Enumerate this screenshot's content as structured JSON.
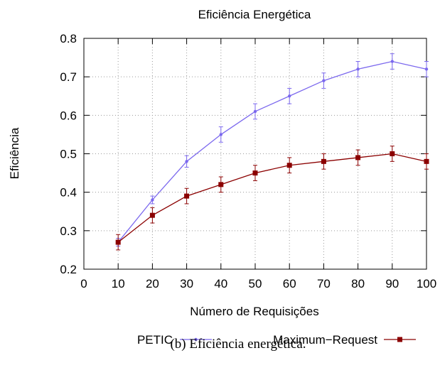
{
  "chart_data": {
    "type": "line",
    "title": "Eficiência Energética",
    "xlabel": "Número de Requisições",
    "ylabel": "Eficiência",
    "x": [
      10,
      20,
      30,
      40,
      50,
      60,
      70,
      80,
      90,
      100
    ],
    "xlim": [
      0,
      100
    ],
    "ylim": [
      0.2,
      0.8
    ],
    "x_ticks": [
      0,
      10,
      20,
      30,
      40,
      50,
      60,
      70,
      80,
      90,
      100
    ],
    "y_ticks": [
      0.2,
      0.3,
      0.4,
      0.5,
      0.6,
      0.7,
      0.8
    ],
    "x_tick_labels": [
      "0",
      "10",
      "20",
      "30",
      "40",
      "50",
      "60",
      "70",
      "80",
      "90",
      "100"
    ],
    "y_tick_labels": [
      "0.2",
      "0.3",
      "0.4",
      "0.5",
      "0.6",
      "0.7",
      "0.8"
    ],
    "grid": true,
    "legend_position": "bottom",
    "series": [
      {
        "name": "PETIC",
        "color": "#7b68ee",
        "marker": "dot",
        "values": [
          0.27,
          0.38,
          0.48,
          0.55,
          0.61,
          0.65,
          0.69,
          0.72,
          0.74,
          0.72
        ],
        "error": [
          0.01,
          0.01,
          0.015,
          0.02,
          0.02,
          0.02,
          0.02,
          0.02,
          0.02,
          0.02
        ]
      },
      {
        "name": "Maximum−Request",
        "color": "#8b0000",
        "marker": "square",
        "values": [
          0.27,
          0.34,
          0.39,
          0.42,
          0.45,
          0.47,
          0.48,
          0.49,
          0.5,
          0.48
        ],
        "error": [
          0.02,
          0.02,
          0.02,
          0.02,
          0.02,
          0.02,
          0.02,
          0.02,
          0.02,
          0.02
        ]
      }
    ]
  },
  "caption": "(b) Eficiência energética."
}
